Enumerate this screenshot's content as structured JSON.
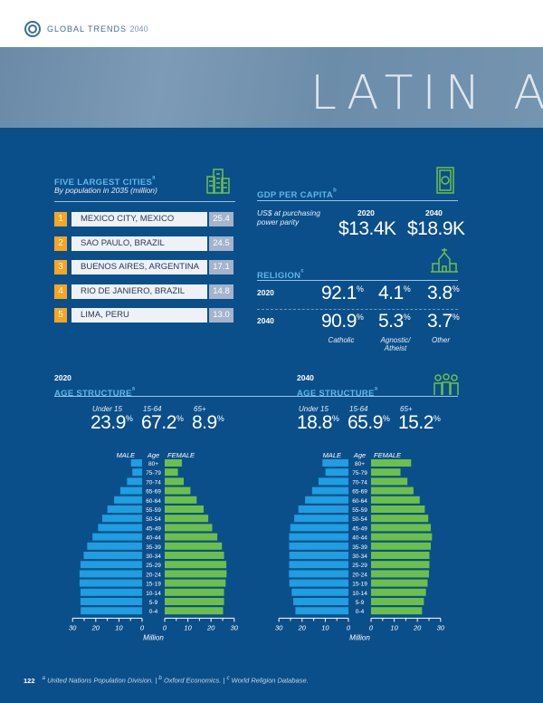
{
  "header": {
    "brand": "GLOBAL TRENDS",
    "brand_year": "2040",
    "banner_title": "LATIN A"
  },
  "colors": {
    "background": "#0b4f8a",
    "heading": "#5fb6e8",
    "rank": "#f6a623",
    "male": "#1f9ee0",
    "female": "#6cc04a",
    "icon": "#6cc04a"
  },
  "cities": {
    "title": "FIVE LARGEST CITIES",
    "sup": "a",
    "subtitle": "By population in 2035 (million)",
    "icon": "buildings-icon",
    "items": [
      {
        "rank": "1",
        "name": "MEXICO CITY, MEXICO",
        "pop": "25.4"
      },
      {
        "rank": "2",
        "name": "SAO PAULO, BRAZIL",
        "pop": "24.5"
      },
      {
        "rank": "3",
        "name": "BUENOS AIRES, ARGENTINA",
        "pop": "17.1"
      },
      {
        "rank": "4",
        "name": "RIO DE JANIERO, BRAZIL",
        "pop": "14.8"
      },
      {
        "rank": "5",
        "name": "LIMA, PERU",
        "pop": "13.0"
      }
    ]
  },
  "gdp": {
    "title": "GDP PER CAPITA",
    "sup": "b",
    "subtitle1": "US$ at purchasing",
    "subtitle2": "power parity",
    "icon": "money-icon",
    "y1": "2020",
    "y2": "2040",
    "v1": "$13.4K",
    "v2": "$18.9K"
  },
  "religion": {
    "title": "RELIGION",
    "sup": "c",
    "icon": "church-icon",
    "labels": [
      "Catholic",
      "Agnostic/",
      "Atheist",
      "Other"
    ],
    "rows": [
      {
        "year": "2020",
        "values": [
          "92.1",
          "4.1",
          "3.8"
        ]
      },
      {
        "year": "2040",
        "values": [
          "90.9",
          "5.3",
          "3.7"
        ]
      }
    ],
    "unit": "%"
  },
  "age": [
    {
      "year": "2020",
      "title": "AGE STRUCTURE",
      "sup": "a",
      "groups": [
        "Under 15",
        "15-64",
        "65+"
      ],
      "values": [
        "23.9",
        "67.2",
        "8.9"
      ]
    },
    {
      "year": "2040",
      "title": "AGE STRUCTURE",
      "sup": "a",
      "groups": [
        "Under 15",
        "15-64",
        "65+"
      ],
      "values": [
        "18.8",
        "65.9",
        "15.2"
      ]
    }
  ],
  "age_icon": "people-icon",
  "chart_data": [
    {
      "type": "bar",
      "orientation": "horizontal-pyramid",
      "year": "2020",
      "xlabel": "Million",
      "legend": [
        "MALE",
        "FEMALE"
      ],
      "category_label": "Age",
      "xlim": [
        0,
        30
      ],
      "ticks": [
        "30",
        "20",
        "10",
        "0",
        "0",
        "10",
        "20",
        "30"
      ],
      "categories": [
        "80+",
        "75-79",
        "70-74",
        "65-69",
        "60-64",
        "55-59",
        "50-54",
        "45-49",
        "40-44",
        "35-39",
        "30-34",
        "25-29",
        "20-24",
        "15-19",
        "10-14",
        "5-9",
        "0-4"
      ],
      "series": [
        {
          "name": "MALE",
          "values": [
            4.8,
            4.2,
            6.5,
            9.4,
            12.1,
            15.0,
            17.2,
            19.0,
            21.4,
            23.7,
            25.2,
            26.6,
            27.0,
            27.0,
            26.6,
            26.6,
            26.5
          ]
        },
        {
          "name": "FEMALE",
          "values": [
            7.4,
            5.7,
            8.2,
            11.1,
            13.8,
            16.8,
            18.8,
            20.5,
            22.7,
            24.7,
            25.6,
            26.6,
            26.7,
            26.3,
            25.6,
            25.6,
            25.2
          ]
        }
      ]
    },
    {
      "type": "bar",
      "orientation": "horizontal-pyramid",
      "year": "2040",
      "xlabel": "Million",
      "legend": [
        "MALE",
        "FEMALE"
      ],
      "category_label": "Age",
      "xlim": [
        0,
        30
      ],
      "ticks": [
        "30",
        "20",
        "10",
        "0",
        "0",
        "10",
        "20",
        "30"
      ],
      "categories": [
        "80+",
        "75-79",
        "70-74",
        "65-69",
        "60-64",
        "55-59",
        "50-54",
        "45-49",
        "40-44",
        "35-39",
        "30-34",
        "25-29",
        "20-24",
        "15-19",
        "10-14",
        "5-9",
        "0-4"
      ],
      "series": [
        {
          "name": "MALE",
          "values": [
            11.2,
            9.9,
            12.9,
            15.7,
            18.7,
            21.6,
            23.4,
            25.1,
            25.6,
            25.6,
            25.5,
            25.6,
            25.7,
            25.5,
            24.5,
            23.8,
            22.9
          ]
        },
        {
          "name": "FEMALE",
          "values": [
            17.3,
            12.7,
            15.7,
            18.3,
            21.0,
            23.2,
            24.7,
            25.8,
            26.3,
            25.8,
            25.2,
            25.2,
            25.0,
            24.4,
            23.7,
            22.8,
            22.0
          ]
        }
      ]
    }
  ],
  "footer": {
    "page": "122",
    "n1": "a",
    "s1": "United Nations Population Division.",
    "n2": "b",
    "s2": "Oxford Economics.",
    "n3": "c",
    "s3": "World Religion Database."
  }
}
